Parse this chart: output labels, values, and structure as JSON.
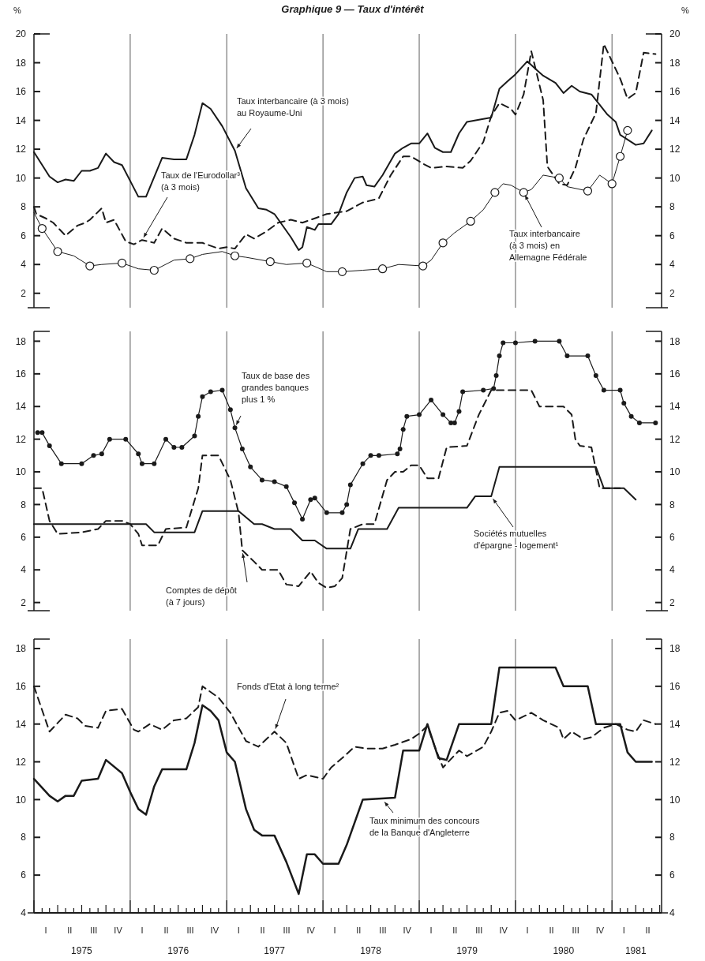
{
  "chart_data": [
    {
      "type": "line",
      "title": "Graphique 9 — Taux d'intérêt",
      "ylabel": "%",
      "y2label": "%",
      "xlim": [
        "1975-01-01",
        "1981-07-08"
      ],
      "ylim": [
        1,
        20
      ],
      "yticks": [
        2,
        4,
        6,
        8,
        10,
        12,
        14,
        16,
        18,
        20
      ],
      "y2lim": [
        1,
        20
      ],
      "y2ticks": [
        2,
        4,
        6,
        8,
        10,
        12,
        14,
        16,
        18,
        20
      ],
      "tick_labels": "y",
      "grid": false,
      "ref_lines": [
        {
          "axis": "x",
          "value": "1976-01-01",
          "color": "#333333"
        },
        {
          "axis": "x",
          "value": "1977-01-01",
          "color": "#333333"
        },
        {
          "axis": "x",
          "value": "1978-01-01",
          "color": "#333333"
        },
        {
          "axis": "x",
          "value": "1979-01-01",
          "color": "#333333"
        },
        {
          "axis": "x",
          "value": "1980-01-01",
          "color": "#333333"
        },
        {
          "axis": "x",
          "value": "1981-01-01",
          "color": "#333333"
        }
      ],
      "series": [
        {
          "type": "line",
          "color": "#1a1a1a",
          "line_style": "solid",
          "x": [
            "1975-01-01",
            "1975-03-01",
            "1975-04-01",
            "1975-05-01",
            "1975-06-01",
            "1975-07-01",
            "1975-08-01",
            "1975-09-01",
            "1975-10-01",
            "1975-11-01",
            "1975-12-01",
            "1976-01-15",
            "1976-02-01",
            "1976-03-01",
            "1976-05-01",
            "1976-06-15",
            "1976-08-01",
            "1976-09-01",
            "1976-10-01",
            "1976-11-01",
            "1976-12-15",
            "1977-02-01",
            "1977-03-15",
            "1977-05-01",
            "1977-06-01",
            "1977-07-01",
            "1977-09-01",
            "1977-10-01",
            "1977-10-15",
            "1977-11-01",
            "1977-12-01",
            "1977-12-15",
            "1978-02-01",
            "1978-03-01",
            "1978-04-01",
            "1978-05-01",
            "1978-06-01",
            "1978-06-15",
            "1978-07-15",
            "1978-08-15",
            "1978-10-01",
            "1978-11-01",
            "1978-12-01",
            "1979-01-01",
            "1979-02-01",
            "1979-03-01",
            "1979-04-01",
            "1979-05-01",
            "1979-06-01",
            "1979-07-01",
            "1979-09-01",
            "1979-10-01",
            "1979-11-01",
            "1979-12-01",
            "1980-01-01",
            "1980-02-15",
            "1980-03-15",
            "1980-04-15",
            "1980-06-01",
            "1980-07-01",
            "1980-08-01",
            "1980-09-01",
            "1980-10-15",
            "1980-12-15",
            "1981-01-15",
            "1981-02-01",
            "1981-04-01",
            "1981-05-01",
            "1981-06-01"
          ],
          "values": [
            11.8,
            10.1,
            9.7,
            9.9,
            9.8,
            10.5,
            10.5,
            10.7,
            11.7,
            11.1,
            10.9,
            9.3,
            8.7,
            8.7,
            11.4,
            11.3,
            11.3,
            13,
            15.2,
            14.8,
            13.6,
            11.9,
            9.3,
            7.9,
            7.8,
            7.5,
            5.9,
            5,
            5.2,
            6.6,
            6.4,
            6.8,
            6.8,
            7.5,
            9,
            10,
            10.1,
            9.5,
            9.4,
            10.2,
            11.7,
            12.1,
            12.4,
            12.4,
            13.1,
            12.1,
            11.8,
            11.8,
            13.1,
            13.9,
            14.1,
            14.2,
            16.2,
            16.7,
            17.2,
            18.1,
            17.6,
            17.1,
            16.6,
            15.9,
            16.4,
            16,
            15.8,
            14.4,
            13.9,
            13,
            12.3,
            12.4,
            13.3
          ]
        },
        {
          "type": "line",
          "color": "#1a1a1a",
          "line_style": "dashed",
          "x": [
            "1975-01-01",
            "1975-01-10",
            "1975-02-15",
            "1975-03-15",
            "1975-05-01",
            "1975-06-15",
            "1975-07-15",
            "1975-08-01",
            "1975-09-15",
            "1975-10-01",
            "1975-11-01",
            "1975-12-15",
            "1976-01-15",
            "1976-02-15",
            "1976-04-01",
            "1976-05-01",
            "1976-06-15",
            "1976-08-01",
            "1976-10-01",
            "1976-12-01",
            "1977-01-01",
            "1977-02-01",
            "1977-03-15",
            "1977-04-15",
            "1977-06-01",
            "1977-07-15",
            "1977-09-01",
            "1977-10-15",
            "1977-12-01",
            "1978-01-15",
            "1978-04-01",
            "1978-06-01",
            "1978-07-15",
            "1978-08-01",
            "1978-09-15",
            "1978-11-01",
            "1978-12-01",
            "1979-01-15",
            "1979-02-15",
            "1979-04-15",
            "1979-06-15",
            "1979-07-15",
            "1979-09-01",
            "1979-10-01",
            "1979-11-01",
            "1979-12-15",
            "1980-01-01",
            "1980-02-01",
            "1980-03-01",
            "1980-04-15",
            "1980-05-01",
            "1980-06-15",
            "1980-07-15",
            "1980-08-15",
            "1980-09-15",
            "1980-11-01",
            "1980-12-01",
            "1981-01-01",
            "1981-02-01",
            "1981-03-01",
            "1981-04-01",
            "1981-05-01",
            "1981-06-15"
          ],
          "values": [
            8,
            7.5,
            7.2,
            6.9,
            6,
            6.7,
            6.9,
            7.1,
            7.9,
            6.9,
            7.1,
            5.6,
            5.4,
            5.7,
            5.5,
            6.5,
            5.8,
            5.5,
            5.5,
            5.1,
            5.2,
            5.1,
            6.1,
            5.8,
            6.3,
            6.9,
            7.1,
            6.9,
            7.2,
            7.5,
            7.7,
            8.3,
            8.5,
            8.6,
            10.2,
            11.5,
            11.5,
            11,
            10.7,
            10.8,
            10.7,
            11.2,
            12.5,
            14.3,
            15.2,
            14.8,
            14.4,
            15.8,
            18.8,
            15.4,
            10.8,
            9.6,
            9.5,
            10.7,
            12.7,
            14.5,
            19.3,
            18.1,
            16.9,
            15.5,
            15.9,
            18.7,
            18.6
          ]
        },
        {
          "type": "line",
          "color": "#1a1a1a",
          "line_style": "solid",
          "x": [
            "1975-01-01",
            "1975-02-01",
            "1975-04-01",
            "1975-06-01",
            "1975-08-01",
            "1975-09-15",
            "1975-12-01",
            "1976-02-01",
            "1976-04-01",
            "1976-06-15",
            "1976-08-15",
            "1976-10-01",
            "1976-12-15",
            "1977-02-01",
            "1977-03-15",
            "1977-06-15",
            "1977-08-15",
            "1977-11-01",
            "1978-01-15",
            "1978-03-15",
            "1978-06-01",
            "1978-08-15",
            "1978-10-15",
            "1979-01-15",
            "1979-02-15",
            "1979-04-01",
            "1979-05-15",
            "1979-07-15",
            "1979-09-01",
            "1979-10-15",
            "1979-11-15",
            "1979-12-15",
            "1980-02-01",
            "1980-03-01",
            "1980-04-15",
            "1980-06-15",
            "1980-07-15",
            "1980-10-01",
            "1980-11-15",
            "1981-01-01",
            "1981-02-01",
            "1981-03-01"
          ],
          "values": [
            7.6,
            6.5,
            4.9,
            4.6,
            3.9,
            4,
            4.1,
            3.7,
            3.6,
            4.3,
            4.4,
            4.7,
            4.9,
            4.6,
            4.5,
            4.2,
            4,
            4.1,
            3.5,
            3.5,
            3.6,
            3.7,
            4,
            3.9,
            4.3,
            5.5,
            6.2,
            7,
            7.8,
            9,
            9.6,
            9.5,
            9,
            9.2,
            10.2,
            10,
            9.4,
            9.1,
            10.2,
            9.6,
            11.5,
            13.3
          ]
        },
        {
          "type": "scatter",
          "color": "#1a1a1a",
          "marker": "circle",
          "x": [
            "1975-02-01",
            "1975-04-01",
            "1975-08-01",
            "1975-12-01",
            "1976-04-01",
            "1976-08-15",
            "1977-02-01",
            "1977-06-15",
            "1977-11-01",
            "1978-03-15",
            "1978-08-15",
            "1979-01-15",
            "1979-04-01",
            "1979-07-15",
            "1979-10-15",
            "1980-02-01",
            "1980-06-15",
            "1980-10-01",
            "1981-01-01",
            "1981-02-01",
            "1981-03-01"
          ],
          "values": [
            6.5,
            4.9,
            3.9,
            4.1,
            3.6,
            4.4,
            4.6,
            4.2,
            4.1,
            3.5,
            3.7,
            3.9,
            5.5,
            7,
            9,
            9,
            10,
            9.1,
            9.6,
            11.5,
            13.3
          ]
        }
      ],
      "annotations": [
        {
          "text": "Taux interbancaire (à 3 mois)\nau Royaume-Uni",
          "x": "1977-02-01",
          "y": 11.9
        },
        {
          "text": "Taux de l'Eurodollar³\n(à 3 mois)",
          "x": "1976-02-15",
          "y": 5.7
        },
        {
          "text": "Taux interbancaire\n(à 3 mois) en\nAllemagne Fédérale",
          "x": "1980-02-01",
          "y": 9
        }
      ]
    },
    {
      "type": "line",
      "xlim": [
        "1975-01-01",
        "1981-07-08"
      ],
      "ylim": [
        1.5,
        18.6
      ],
      "yticks": [
        2,
        4,
        6,
        8,
        10,
        12,
        14,
        16,
        18
      ],
      "y2lim": [
        1.5,
        18.6
      ],
      "y2ticks": [
        2,
        4,
        6,
        8,
        10,
        12,
        14,
        16,
        18
      ],
      "tick_labels": "y",
      "grid": false,
      "ref_lines": [
        {
          "axis": "x",
          "value": "1976-01-01",
          "color": "#333333"
        },
        {
          "axis": "x",
          "value": "1977-01-01",
          "color": "#333333"
        },
        {
          "axis": "x",
          "value": "1978-01-01",
          "color": "#333333"
        },
        {
          "axis": "x",
          "value": "1979-01-01",
          "color": "#333333"
        },
        {
          "axis": "x",
          "value": "1980-01-01",
          "color": "#333333"
        },
        {
          "axis": "x",
          "value": "1981-01-01",
          "color": "#333333"
        }
      ],
      "series": [
        {
          "type": "line",
          "color": "#1a1a1a",
          "line_style": "solid",
          "marker": "circle",
          "x": [
            "1975-01-15",
            "1975-02-01",
            "1975-03-01",
            "1975-04-15",
            "1975-07-01",
            "1975-08-15",
            "1975-09-15",
            "1975-10-15",
            "1975-12-15",
            "1976-02-01",
            "1976-02-15",
            "1976-04-01",
            "1976-05-15",
            "1976-06-15",
            "1976-07-15",
            "1976-09-01",
            "1976-09-15",
            "1976-10-01",
            "1976-11-01",
            "1976-12-15",
            "1977-01-15",
            "1977-02-01",
            "1977-03-01",
            "1977-04-01",
            "1977-05-15",
            "1977-07-01",
            "1977-08-15",
            "1977-09-15",
            "1977-10-15",
            "1977-11-15",
            "1977-12-01",
            "1978-01-15",
            "1978-03-15",
            "1978-04-01",
            "1978-04-15",
            "1978-06-01",
            "1978-07-01",
            "1978-08-01",
            "1978-10-10",
            "1978-10-20",
            "1978-11-01",
            "1978-11-15",
            "1979-01-01",
            "1979-02-15",
            "1979-04-01",
            "1979-05-01",
            "1979-05-15",
            "1979-06-01",
            "1979-06-15",
            "1979-09-01",
            "1979-10-10",
            "1979-10-20",
            "1979-11-01",
            "1979-11-15",
            "1980-01-01",
            "1980-03-15",
            "1980-06-15",
            "1980-07-15",
            "1980-10-01",
            "1980-11-01",
            "1980-12-01",
            "1981-02-01",
            "1981-02-15",
            "1981-03-15",
            "1981-04-15",
            "1981-06-15"
          ],
          "values": [
            12.4,
            12.4,
            11.6,
            10.5,
            10.5,
            11,
            11.1,
            12,
            12,
            11.1,
            10.5,
            10.5,
            12,
            11.5,
            11.5,
            12.2,
            13.4,
            14.6,
            14.9,
            15,
            13.8,
            12.7,
            11.4,
            10.3,
            9.5,
            9.4,
            9.1,
            8.1,
            7.1,
            8.3,
            8.4,
            7.5,
            7.5,
            8,
            9.2,
            10.5,
            11,
            11,
            11.1,
            11.4,
            12.6,
            13.4,
            13.5,
            14.4,
            13.5,
            13,
            13,
            13.7,
            14.9,
            15,
            15.1,
            15.9,
            17.1,
            17.9,
            17.9,
            18,
            18,
            17.1,
            17.1,
            15.9,
            15,
            15,
            14.2,
            13.4,
            13,
            13
          ]
        },
        {
          "type": "line",
          "color": "#1a1a1a",
          "line_style": "dashed",
          "x": [
            "1975-01-01",
            "1975-02-01",
            "1975-03-01",
            "1975-04-01",
            "1975-07-01",
            "1975-09-01",
            "1975-10-01",
            "1975-12-01",
            "1976-01-01",
            "1976-02-01",
            "1976-02-15",
            "1976-04-15",
            "1976-05-15",
            "1976-08-01",
            "1976-09-15",
            "1976-10-01",
            "1976-12-01",
            "1977-01-15",
            "1977-02-15",
            "1977-03-01",
            "1977-04-15",
            "1977-05-15",
            "1977-07-15",
            "1977-08-15",
            "1977-10-01",
            "1977-11-15",
            "1977-12-15",
            "1978-01-15",
            "1978-02-15",
            "1978-03-15",
            "1978-04-15",
            "1978-06-01",
            "1978-07-15",
            "1978-09-01",
            "1978-10-01",
            "1978-11-01",
            "1978-12-01",
            "1979-01-01",
            "1979-02-01",
            "1979-03-15",
            "1979-04-15",
            "1979-07-01",
            "1979-08-15",
            "1979-10-01",
            "1979-12-01",
            "1980-03-01",
            "1980-04-01",
            "1980-07-01",
            "1980-08-01",
            "1980-08-15",
            "1980-09-01",
            "1980-10-15",
            "1980-11-15",
            "1981-02-01"
          ],
          "values": [
            9,
            9,
            7,
            6.2,
            6.3,
            6.5,
            7,
            7,
            6.8,
            6.2,
            5.5,
            5.5,
            6.5,
            6.6,
            9,
            11,
            11,
            9.5,
            7.5,
            5.2,
            4.5,
            4,
            4,
            3.1,
            3,
            3.9,
            3.2,
            2.9,
            3,
            3.5,
            6.5,
            6.8,
            6.8,
            9.5,
            10,
            10,
            10.4,
            10.4,
            9.6,
            9.6,
            11.5,
            11.6,
            13.5,
            15,
            15,
            15,
            14,
            14,
            13.5,
            12,
            11.6,
            11.5,
            9,
            9
          ]
        },
        {
          "type": "line",
          "color": "#1a1a1a",
          "line_style": "solid",
          "x": [
            "1975-01-01",
            "1976-03-01",
            "1976-04-01",
            "1976-09-01",
            "1976-10-01",
            "1977-02-15",
            "1977-04-15",
            "1977-05-15",
            "1977-07-01",
            "1977-09-01",
            "1977-10-15",
            "1977-12-01",
            "1978-01-15",
            "1978-04-15",
            "1978-05-15",
            "1978-09-01",
            "1978-10-15",
            "1979-07-01",
            "1979-08-01",
            "1979-10-01",
            "1979-11-01",
            "1980-11-01",
            "1980-12-01",
            "1981-02-15",
            "1981-04-01"
          ],
          "values": [
            6.8,
            6.8,
            6.3,
            6.3,
            7.6,
            7.6,
            6.8,
            6.8,
            6.5,
            6.5,
            5.8,
            5.8,
            5.3,
            5.3,
            6.5,
            6.5,
            7.8,
            7.8,
            8.5,
            8.5,
            10.3,
            10.3,
            9,
            9,
            8.3
          ]
        }
      ],
      "annotations": [
        {
          "text": "Taux de base des\ngrandes banques\nplus 1 %",
          "x": "1977-02-01",
          "y": 12.7
        },
        {
          "text": "Comptes de dépôt\n(à 7 jours)",
          "x": "1977-03-01",
          "y": 5.2
        },
        {
          "text": "Sociétés mutuelles\nd'épargne - logement¹",
          "x": "1979-10-01",
          "y": 8.5
        }
      ]
    },
    {
      "type": "line",
      "xlim": [
        "1975-01-01",
        "1981-07-08"
      ],
      "ylim": [
        4,
        18.5
      ],
      "yticks": [
        4,
        6,
        8,
        10,
        12,
        14,
        16,
        18
      ],
      "y2lim": [
        4,
        18.5
      ],
      "y2ticks": [
        4,
        6,
        8,
        10,
        12,
        14,
        16,
        18
      ],
      "grid": false,
      "xticks": [
        {
          "value": "1975-07-01",
          "label": "1975"
        },
        {
          "value": "1976-07-01",
          "label": "1976"
        },
        {
          "value": "1977-07-01",
          "label": "1977"
        },
        {
          "value": "1978-07-01",
          "label": "1978"
        },
        {
          "value": "1979-07-01",
          "label": "1979"
        },
        {
          "value": "1980-07-01",
          "label": "1980"
        },
        {
          "value": "1981-04-01",
          "label": "1981"
        }
      ],
      "ref_lines": [
        {
          "axis": "x",
          "value": "1976-01-01",
          "color": "#333333"
        },
        {
          "axis": "x",
          "value": "1977-01-01",
          "color": "#333333"
        },
        {
          "axis": "x",
          "value": "1978-01-01",
          "color": "#333333"
        },
        {
          "axis": "x",
          "value": "1979-01-01",
          "color": "#333333"
        },
        {
          "axis": "x",
          "value": "1980-01-01",
          "color": "#333333"
        },
        {
          "axis": "x",
          "value": "1981-01-01",
          "color": "#333333"
        }
      ],
      "series": [
        {
          "type": "line",
          "color": "#1a1a1a",
          "line_style": "dashed",
          "x": [
            "1975-01-01",
            "1975-03-01",
            "1975-05-01",
            "1975-06-15",
            "1975-07-15",
            "1975-09-01",
            "1975-10-01",
            "1975-12-01",
            "1976-01-15",
            "1976-02-01",
            "1976-03-15",
            "1976-05-01",
            "1976-06-15",
            "1976-08-01",
            "1976-09-15",
            "1976-10-01",
            "1976-12-01",
            "1977-01-15",
            "1977-03-15",
            "1977-05-01",
            "1977-07-01",
            "1977-08-15",
            "1977-10-01",
            "1977-11-01",
            "1978-01-01",
            "1978-02-01",
            "1978-03-15",
            "1978-05-01",
            "1978-06-15",
            "1978-08-15",
            "1978-10-01",
            "1978-12-01",
            "1979-01-01",
            "1979-02-01",
            "1979-03-01",
            "1979-04-01",
            "1979-06-01",
            "1979-07-01",
            "1979-09-01",
            "1979-10-01",
            "1979-11-01",
            "1979-12-01",
            "1980-01-01",
            "1980-03-01",
            "1980-04-15",
            "1980-06-15",
            "1980-07-01",
            "1980-08-01",
            "1980-09-15",
            "1980-10-15",
            "1980-12-01",
            "1981-01-15",
            "1981-03-01",
            "1981-04-01",
            "1981-05-01",
            "1981-06-15"
          ],
          "values": [
            16,
            13.6,
            14.5,
            14.3,
            13.9,
            13.8,
            14.7,
            14.8,
            13.7,
            13.6,
            14,
            13.7,
            14.2,
            14.3,
            14.9,
            16,
            15.4,
            14.6,
            13.1,
            12.8,
            13.6,
            13,
            11.1,
            11.3,
            11.1,
            11.7,
            12.2,
            12.8,
            12.7,
            12.7,
            12.9,
            13.2,
            13.5,
            13.9,
            12.8,
            11.7,
            12.6,
            12.3,
            12.8,
            13.6,
            14.6,
            14.7,
            14.2,
            14.6,
            14.2,
            13.8,
            13.2,
            13.6,
            13.2,
            13.3,
            13.8,
            14,
            13.7,
            13.6,
            14.2,
            14
          ]
        },
        {
          "type": "line",
          "color": "#1a1a1a",
          "line_style": "solid",
          "x": [
            "1975-01-01",
            "1975-03-01",
            "1975-04-01",
            "1975-05-01",
            "1975-06-01",
            "1975-07-01",
            "1975-09-01",
            "1975-10-01",
            "1975-12-01",
            "1976-01-01",
            "1976-02-01",
            "1976-03-01",
            "1976-04-01",
            "1976-05-01",
            "1976-08-01",
            "1976-09-01",
            "1976-10-01",
            "1976-11-01",
            "1976-12-01",
            "1977-01-01",
            "1977-02-01",
            "1977-03-15",
            "1977-04-15",
            "1977-05-15",
            "1977-07-01",
            "1977-08-15",
            "1977-10-01",
            "1977-11-01",
            "1977-12-01",
            "1978-01-01",
            "1978-03-01",
            "1978-04-01",
            "1978-06-01",
            "1978-10-01",
            "1978-11-01",
            "1979-01-01",
            "1979-02-01",
            "1979-03-15",
            "1979-04-15",
            "1979-06-01",
            "1979-10-01",
            "1979-11-01",
            "1980-06-01",
            "1980-07-01",
            "1980-10-01",
            "1980-11-01",
            "1981-02-01",
            "1981-03-01",
            "1981-04-01",
            "1981-06-01"
          ],
          "values": [
            11.1,
            10.2,
            9.9,
            10.2,
            10.2,
            11,
            11.1,
            12.1,
            11.4,
            10.4,
            9.5,
            9.2,
            10.7,
            11.6,
            11.6,
            13,
            15,
            14.7,
            14.2,
            12.5,
            12,
            9.5,
            8.4,
            8.1,
            8.1,
            6.7,
            5,
            7.1,
            7.1,
            6.6,
            6.6,
            7.6,
            10,
            10.1,
            12.6,
            12.6,
            14,
            12.2,
            12.1,
            14,
            14,
            17,
            17,
            16,
            16,
            14,
            14,
            12.5,
            12,
            12
          ]
        }
      ],
      "annotations": [
        {
          "text": "Fonds d'Etat à long terme²",
          "x": "1977-07-01",
          "y": 13.6
        },
        {
          "text": "Taux minimum des concours\nde la Banque d'Angleterre",
          "x": "1978-08-15",
          "y": 10
        },
        "I",
        "II",
        "III",
        "IV",
        "I",
        "II",
        "III",
        "IV",
        "I",
        "II",
        "III",
        "IV",
        "I",
        "II",
        "III",
        "IV",
        "I",
        "II",
        "III",
        "IV",
        "I",
        "II",
        "III",
        "IV",
        "I",
        "II"
      ]
    }
  ]
}
